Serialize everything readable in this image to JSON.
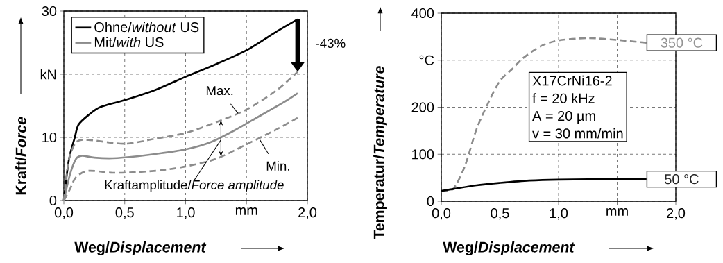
{
  "chart_data": [
    {
      "type": "line",
      "xlabel": "Weg/*Displacement*",
      "ylabel": "Kraft/*Force*",
      "xlim": [
        0,
        2
      ],
      "ylim": [
        0,
        30
      ],
      "xticks": [
        {
          "value": 0,
          "label": "0,0"
        },
        {
          "value": 0.5,
          "label": "0,5"
        },
        {
          "value": 1,
          "label": "1,0"
        },
        {
          "value": 1.5,
          "label": "mm"
        },
        {
          "value": 2,
          "label": "2,0"
        }
      ],
      "yticks": [
        0,
        10,
        {
          "value": 20,
          "label": "kN"
        },
        30
      ],
      "grid": true,
      "legend": "top left",
      "series": [
        {
          "name": "Ohne/*without* US",
          "color": "#000000",
          "line_style": "solid",
          "x": [
            0,
            0.04,
            0.09,
            0.12,
            0.2,
            0.3,
            0.5,
            0.75,
            1.0,
            1.25,
            1.5,
            1.75,
            1.92
          ],
          "values": [
            0,
            6.3,
            10,
            12,
            13.5,
            14.8,
            15.9,
            17.5,
            19.6,
            21.6,
            23.8,
            26.8,
            28.7
          ]
        },
        {
          "name": "Mit/*with* US",
          "color": "#8c8c8c",
          "line_style": "solid",
          "x": [
            0,
            0.05,
            0.1,
            0.15,
            0.25,
            0.4,
            0.6,
            0.8,
            1.0,
            1.2,
            1.4,
            1.6,
            1.8,
            1.92
          ],
          "values": [
            0,
            4.1,
            6.6,
            7.1,
            6.8,
            6.7,
            7.0,
            7.5,
            8.1,
            9.2,
            11.1,
            13.3,
            15.5,
            17.0
          ]
        },
        {
          "color": "#8c8c8c",
          "line_style": "dashed",
          "x": [
            0,
            0.04,
            0.1,
            0.2,
            0.5,
            0.75,
            1.0,
            1.25,
            1.5,
            1.75,
            1.92
          ],
          "values": [
            0,
            6.3,
            9.2,
            9.6,
            9.0,
            9.8,
            10.7,
            12.4,
            14.4,
            17.5,
            20.4
          ]
        },
        {
          "color": "#8c8c8c",
          "line_style": "dashed",
          "x": [
            0,
            0.05,
            0.1,
            0.2,
            0.4,
            0.6,
            0.8,
            1.0,
            1.25,
            1.5,
            1.75,
            1.92
          ],
          "values": [
            0,
            1.8,
            3.7,
            4.7,
            4.4,
            4.5,
            4.8,
            5.4,
            6.6,
            8.9,
            11.3,
            13.1
          ]
        }
      ],
      "annotations": [
        {
          "text": "Max.",
          "x": 1.43,
          "y": 13.8
        },
        {
          "text": "Min.",
          "x": 1.61,
          "y": 9.6
        },
        {
          "text": "Kraftamplitude/*Force amplitude*",
          "x": 1.29,
          "y": 9.6
        },
        {
          "text": "-43%",
          "x": 1.92,
          "y": 20.4
        }
      ]
    },
    {
      "type": "line",
      "xlabel": "Weg/*Displacement*",
      "ylabel": "Temperatur/*Temperature*",
      "xlim": [
        0,
        2
      ],
      "ylim": [
        0,
        400
      ],
      "xticks": [
        {
          "value": 0,
          "label": "0,0"
        },
        {
          "value": 0.5,
          "label": "0,5"
        },
        {
          "value": 1,
          "label": "1,0"
        },
        {
          "value": 1.5,
          "label": "mm"
        },
        {
          "value": 2,
          "label": "2,0"
        }
      ],
      "yticks": [
        0,
        100,
        200,
        {
          "value": 300,
          "label": "°C"
        },
        400
      ],
      "grid": true,
      "series": [
        {
          "color": "#8c8c8c",
          "line_style": "dashed",
          "x": [
            0,
            0.1,
            0.2,
            0.3,
            0.4,
            0.5,
            0.6,
            0.7,
            0.85,
            1.0,
            1.25,
            1.5,
            1.75
          ],
          "values": [
            22,
            26,
            74,
            153,
            209,
            256,
            280,
            305,
            330,
            342,
            347,
            343,
            337
          ]
        },
        {
          "color": "#000000",
          "line_style": "solid",
          "x": [
            0,
            0.1,
            0.3,
            0.5,
            0.75,
            1.0,
            1.5,
            1.75
          ],
          "values": [
            22,
            26,
            34,
            39,
            44,
            46,
            47,
            47
          ]
        }
      ],
      "annotations": [
        {
          "text": "350 °C",
          "x": 1.75,
          "y": 337
        },
        {
          "text": "50 °C",
          "x": 1.75,
          "y": 47
        },
        "X17CrNi16-2",
        "f = 20 kHz",
        "A = 20 µm",
        "v = 30 mm/min"
      ]
    }
  ]
}
